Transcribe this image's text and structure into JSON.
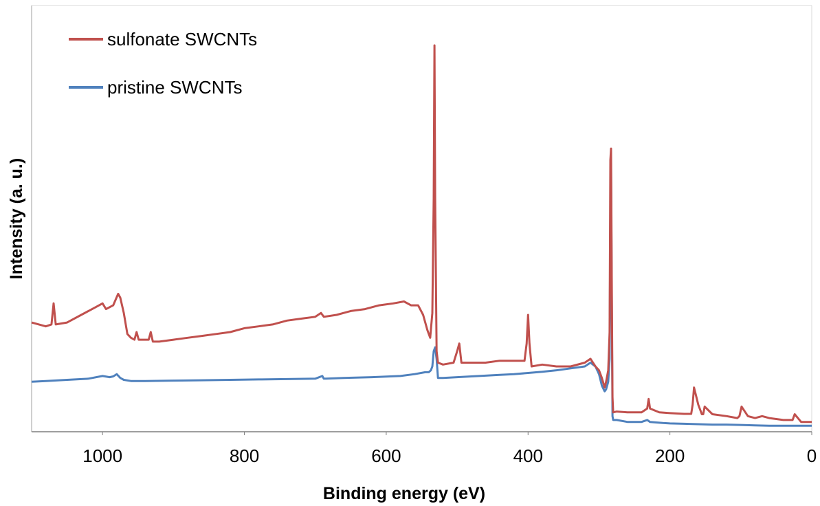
{
  "chart_data": {
    "type": "line",
    "title": "",
    "xlabel": "Binding energy (eV)",
    "ylabel": "Intensity (a. u.)",
    "xlim": [
      1100,
      0
    ],
    "ylim": [
      0,
      100
    ],
    "x_reversed": true,
    "x_ticks": [
      1000,
      800,
      600,
      400,
      200,
      0
    ],
    "y_ticks_shown": false,
    "grid": false,
    "legend_position": "top-left",
    "series": [
      {
        "name": "sulfonate SWCNTs",
        "color": "#c0504d",
        "x": [
          1100,
          1080,
          1072,
          1069,
          1066,
          1050,
          1030,
          1010,
          1000,
          995,
          985,
          978,
          975,
          970,
          965,
          960,
          955,
          952,
          949,
          940,
          935,
          932,
          929,
          920,
          900,
          880,
          860,
          840,
          820,
          800,
          780,
          760,
          740,
          720,
          700,
          692,
          688,
          670,
          650,
          630,
          610,
          590,
          575,
          565,
          555,
          548,
          542,
          538,
          535,
          533,
          532,
          531,
          529,
          527,
          520,
          505,
          500,
          497,
          494,
          480,
          460,
          440,
          420,
          405,
          402,
          400,
          398,
          395,
          380,
          360,
          340,
          320,
          312,
          305,
          300,
          296,
          292,
          290,
          287,
          285,
          284,
          283,
          282,
          281,
          280,
          275,
          260,
          240,
          232,
          230,
          228,
          215,
          200,
          180,
          170,
          168,
          166,
          160,
          155,
          153,
          151,
          140,
          120,
          105,
          102,
          99,
          90,
          80,
          70,
          60,
          40,
          30,
          27,
          24,
          15,
          10,
          0
        ],
        "y": [
          27.5,
          26.5,
          27,
          32.5,
          27,
          27.5,
          29.5,
          31.5,
          32.5,
          31,
          32,
          35,
          34,
          30,
          24.5,
          23.5,
          23,
          25,
          23,
          23,
          23,
          25,
          22.5,
          22.5,
          23,
          23.5,
          24,
          24.5,
          25,
          26,
          26.5,
          27,
          28,
          28.5,
          29,
          30,
          29,
          29.5,
          30.5,
          31,
          32,
          32.5,
          33,
          32,
          32,
          29.5,
          25.5,
          23.5,
          30,
          60,
          100,
          60,
          20,
          17,
          16.5,
          17,
          20,
          22,
          17,
          17,
          17,
          17.5,
          17.5,
          17.5,
          22,
          29.5,
          22,
          16,
          16.5,
          16,
          16,
          17,
          18,
          16,
          15,
          13,
          10.5,
          12,
          15,
          25,
          70,
          73,
          40,
          8,
          4,
          4.2,
          4,
          4,
          5,
          7.5,
          5,
          4,
          3.8,
          3.6,
          3.6,
          6,
          10.5,
          6,
          3.5,
          3.5,
          5.5,
          3.5,
          3,
          2.5,
          3,
          5.5,
          3,
          2.5,
          3,
          2.5,
          2,
          2,
          2,
          3.5,
          1.5,
          1.5,
          1.5
        ]
      },
      {
        "name": "pristine SWCNTs",
        "color": "#4f81bd",
        "x": [
          1100,
          1080,
          1050,
          1020,
          1000,
          990,
          985,
          980,
          975,
          970,
          960,
          940,
          900,
          860,
          820,
          780,
          740,
          700,
          690,
          688,
          685,
          660,
          620,
          580,
          560,
          545,
          540,
          537,
          535,
          533,
          531,
          529,
          527,
          520,
          500,
          480,
          460,
          440,
          420,
          400,
          380,
          360,
          340,
          320,
          312,
          305,
          300,
          296,
          292,
          290,
          287,
          285,
          284,
          283,
          282,
          281,
          280,
          275,
          260,
          240,
          232,
          228,
          210,
          200,
          180,
          160,
          140,
          120,
          100,
          80,
          60,
          40,
          20,
          0
        ],
        "y": [
          12,
          12.2,
          12.5,
          12.8,
          13.5,
          13.2,
          13.4,
          14,
          13,
          12.5,
          12.2,
          12.2,
          12.3,
          12.4,
          12.5,
          12.6,
          12.7,
          12.8,
          13.5,
          12.8,
          12.8,
          13,
          13.2,
          13.5,
          14,
          14.5,
          14.5,
          15,
          16,
          20,
          21,
          18,
          13,
          13,
          13.2,
          13.4,
          13.6,
          13.8,
          14,
          14.3,
          14.6,
          15,
          15.5,
          16,
          17,
          16,
          14,
          11,
          9.5,
          10,
          12,
          18,
          55,
          68,
          35,
          3,
          2,
          2,
          1.5,
          1.5,
          2,
          1.5,
          1.2,
          1.1,
          1,
          0.9,
          0.8,
          0.8,
          0.7,
          0.6,
          0.5,
          0.5,
          0.5,
          0.5
        ]
      }
    ]
  }
}
